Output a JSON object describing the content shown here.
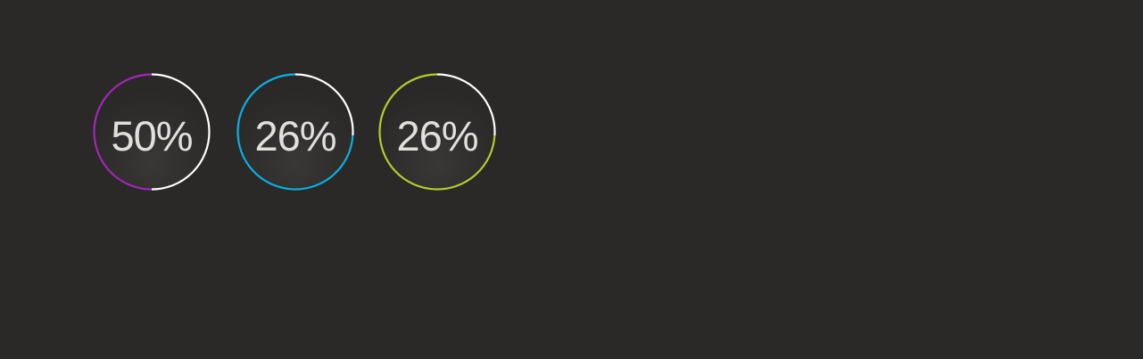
{
  "gauges": [
    {
      "label": "50%",
      "fraction": 0.5,
      "color": "#a326b8",
      "remaining_color": "#ffffff"
    },
    {
      "label": "26%",
      "fraction": 0.26,
      "color": "#0ab0e3",
      "remaining_color": "#ffffff"
    },
    {
      "label": "26%",
      "fraction": 0.26,
      "color": "#b5cc2a",
      "remaining_color": "#ffffff"
    }
  ]
}
